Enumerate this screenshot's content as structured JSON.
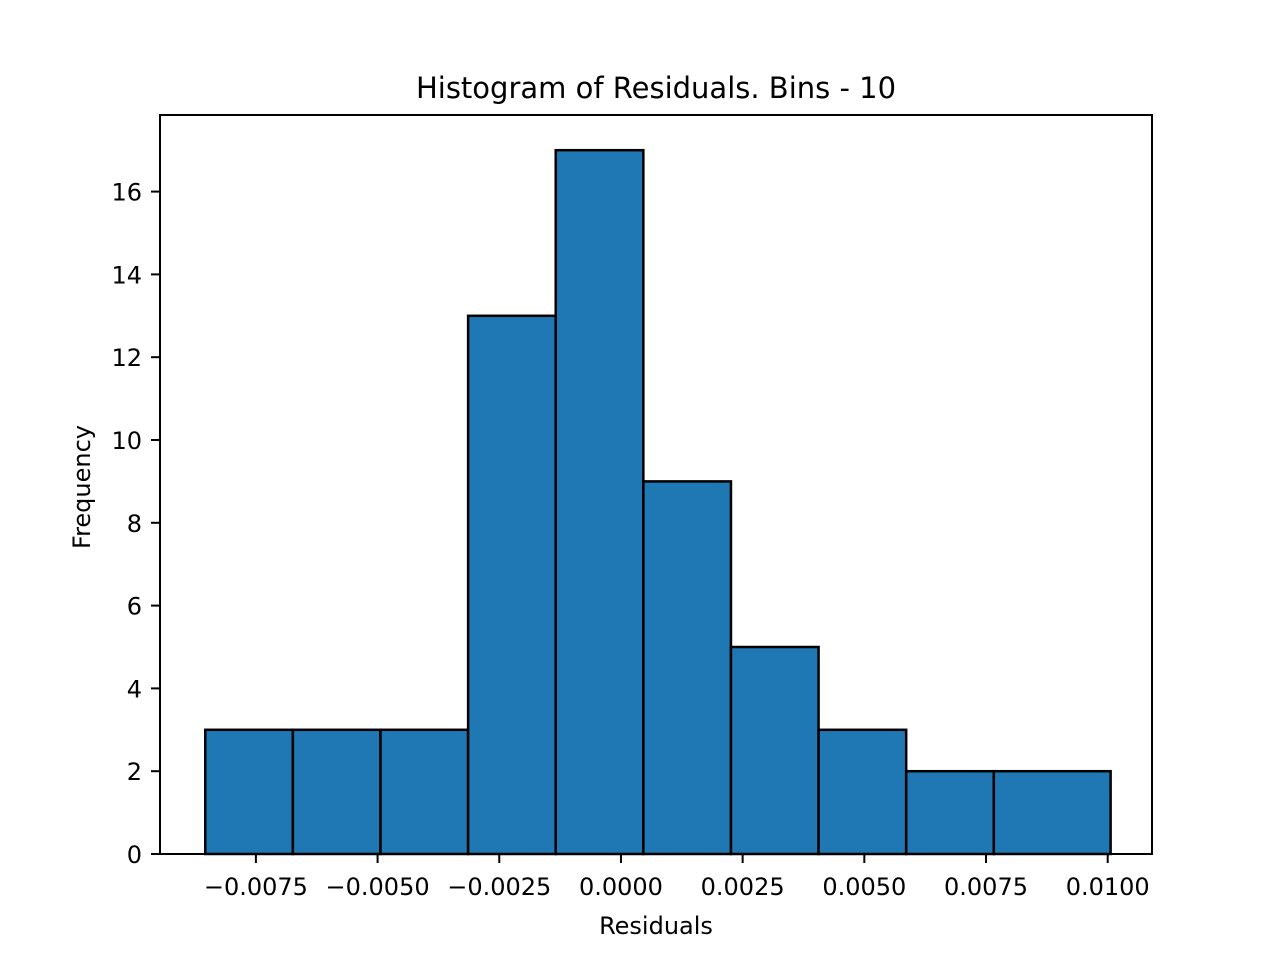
{
  "chart_data": {
    "type": "bar",
    "title": "Histogram of Residuals. Bins - 10",
    "xlabel": "Residuals",
    "ylabel": "Frequency",
    "bin_edges": [
      -0.00854,
      -0.00674,
      -0.00494,
      -0.00314,
      -0.00134,
      0.00046,
      0.00226,
      0.00406,
      0.00586,
      0.00766,
      0.01006
    ],
    "values": [
      3,
      3,
      3,
      13,
      17,
      9,
      5,
      3,
      2,
      2
    ],
    "xlim": [
      -0.00947,
      0.01091
    ],
    "ylim": [
      0,
      17.85
    ],
    "xticks": [
      -0.0075,
      -0.005,
      -0.0025,
      0.0,
      0.0025,
      0.005,
      0.0075,
      0.01
    ],
    "xtick_labels": [
      "−0.0075",
      "−0.0050",
      "−0.0025",
      "0.0000",
      "0.0025",
      "0.0050",
      "0.0075",
      "0.0100"
    ],
    "yticks": [
      0,
      2,
      4,
      6,
      8,
      10,
      12,
      14,
      16
    ],
    "ytick_labels": [
      "0",
      "2",
      "4",
      "6",
      "8",
      "10",
      "12",
      "14",
      "16"
    ],
    "bar_color": "#1f77b4",
    "edge_color": "#000000",
    "grid": false,
    "legend": "none"
  }
}
